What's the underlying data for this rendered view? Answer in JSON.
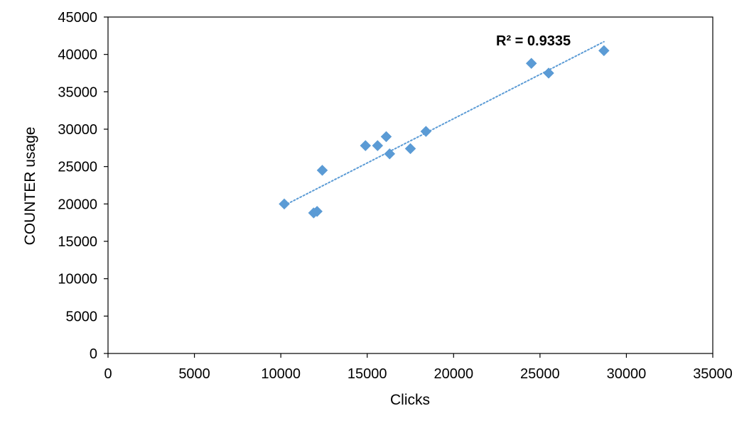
{
  "chart_data": {
    "type": "scatter",
    "xlabel": "Clicks",
    "ylabel": "COUNTER usage",
    "xlim": [
      0,
      35000
    ],
    "ylim": [
      0,
      45000
    ],
    "x_ticks": [
      0,
      5000,
      10000,
      15000,
      20000,
      25000,
      30000,
      35000
    ],
    "y_ticks": [
      0,
      5000,
      10000,
      15000,
      20000,
      25000,
      30000,
      35000,
      40000,
      45000
    ],
    "grid": false,
    "legend": "none",
    "series": [
      {
        "marker": "diamond",
        "color": "#5B9BD5",
        "points": [
          {
            "x": 10200,
            "y": 20000
          },
          {
            "x": 11900,
            "y": 18800
          },
          {
            "x": 12100,
            "y": 19000
          },
          {
            "x": 12400,
            "y": 24500
          },
          {
            "x": 14900,
            "y": 27800
          },
          {
            "x": 15600,
            "y": 27800
          },
          {
            "x": 16100,
            "y": 29000
          },
          {
            "x": 16300,
            "y": 26700
          },
          {
            "x": 17500,
            "y": 27400
          },
          {
            "x": 18400,
            "y": 29700
          },
          {
            "x": 24500,
            "y": 38800
          },
          {
            "x": 25500,
            "y": 37500
          },
          {
            "x": 28700,
            "y": 40500
          }
        ]
      }
    ],
    "trendline": {
      "type": "linear",
      "style": "dotted",
      "color": "#5B9BD5",
      "x_range": [
        10200,
        28700
      ],
      "y_range": [
        19800,
        41700
      ],
      "annotation": "R² = 0.9335"
    }
  }
}
